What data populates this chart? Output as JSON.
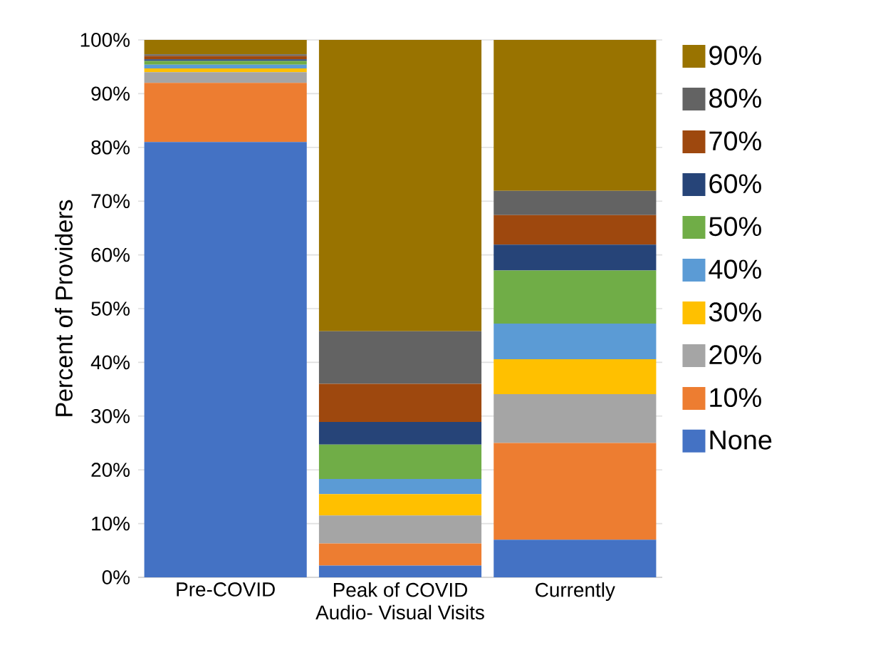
{
  "chart_data": {
    "type": "bar",
    "stacked": true,
    "xlabel": "Audio- Visual Visits",
    "ylabel": "Percent of Providers",
    "categories": [
      "Pre-COVID",
      "Peak of COVID",
      "Currently"
    ],
    "series": [
      {
        "name": "None",
        "color": "#4472c4",
        "values": [
          81,
          2.2,
          7.0
        ]
      },
      {
        "name": "10%",
        "color": "#ed7d31",
        "values": [
          11,
          4.1,
          18.0
        ]
      },
      {
        "name": "20%",
        "color": "#a5a5a5",
        "values": [
          2,
          5.2,
          9.1
        ]
      },
      {
        "name": "30%",
        "color": "#ffc000",
        "values": [
          0.7,
          4.0,
          6.5
        ]
      },
      {
        "name": "40%",
        "color": "#5b9bd5",
        "values": [
          0.7,
          2.8,
          6.6
        ]
      },
      {
        "name": "50%",
        "color": "#70ad47",
        "values": [
          0.7,
          6.4,
          9.9
        ]
      },
      {
        "name": "60%",
        "color": "#264478",
        "values": [
          0.3,
          4.2,
          4.8
        ]
      },
      {
        "name": "70%",
        "color": "#9e480e",
        "values": [
          0.6,
          7.1,
          5.5
        ]
      },
      {
        "name": "80%",
        "color": "#636363",
        "values": [
          0.3,
          9.8,
          4.5
        ]
      },
      {
        "name": "90%",
        "color": "#997300",
        "values": [
          2.7,
          54.2,
          28.1
        ]
      }
    ],
    "ylim": [
      0,
      100
    ],
    "yticks": [
      {
        "value": 0,
        "label": "0%"
      },
      {
        "value": 10,
        "label": "10%"
      },
      {
        "value": 20,
        "label": "20%"
      },
      {
        "value": 30,
        "label": "30%"
      },
      {
        "value": 40,
        "label": "40%"
      },
      {
        "value": 50,
        "label": "50%"
      },
      {
        "value": 60,
        "label": "60%"
      },
      {
        "value": 70,
        "label": "70%"
      },
      {
        "value": 80,
        "label": "80%"
      },
      {
        "value": 90,
        "label": "90%"
      },
      {
        "value": 100,
        "label": "100%"
      }
    ],
    "grid": "y",
    "legend": "right"
  }
}
